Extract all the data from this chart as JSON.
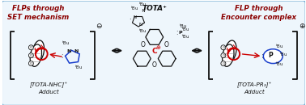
{
  "fig_width": 3.78,
  "fig_height": 1.3,
  "dpi": 100,
  "bg_color": "#ffffff",
  "border_color": "#7ab0d4",
  "fill_color": "#eef6fc",
  "title_left": "FLPs through\nSET mechanism",
  "title_right": "FLP through\nEncounter complex",
  "title_color": "#8b0000",
  "title_fontsize": 6.2,
  "center_label": "TOTA⁺",
  "left_label": "[TOTA-NHC]⁺\nAdduct",
  "right_label": "[TOTA-PR₃]⁺\nAdduct",
  "label_fontsize": 5.2,
  "arrow_color": "#1a1a1a",
  "red_color": "#cc0000",
  "blue_color": "#1a3fcc",
  "dark_color": "#111111",
  "gray_color": "#555555"
}
